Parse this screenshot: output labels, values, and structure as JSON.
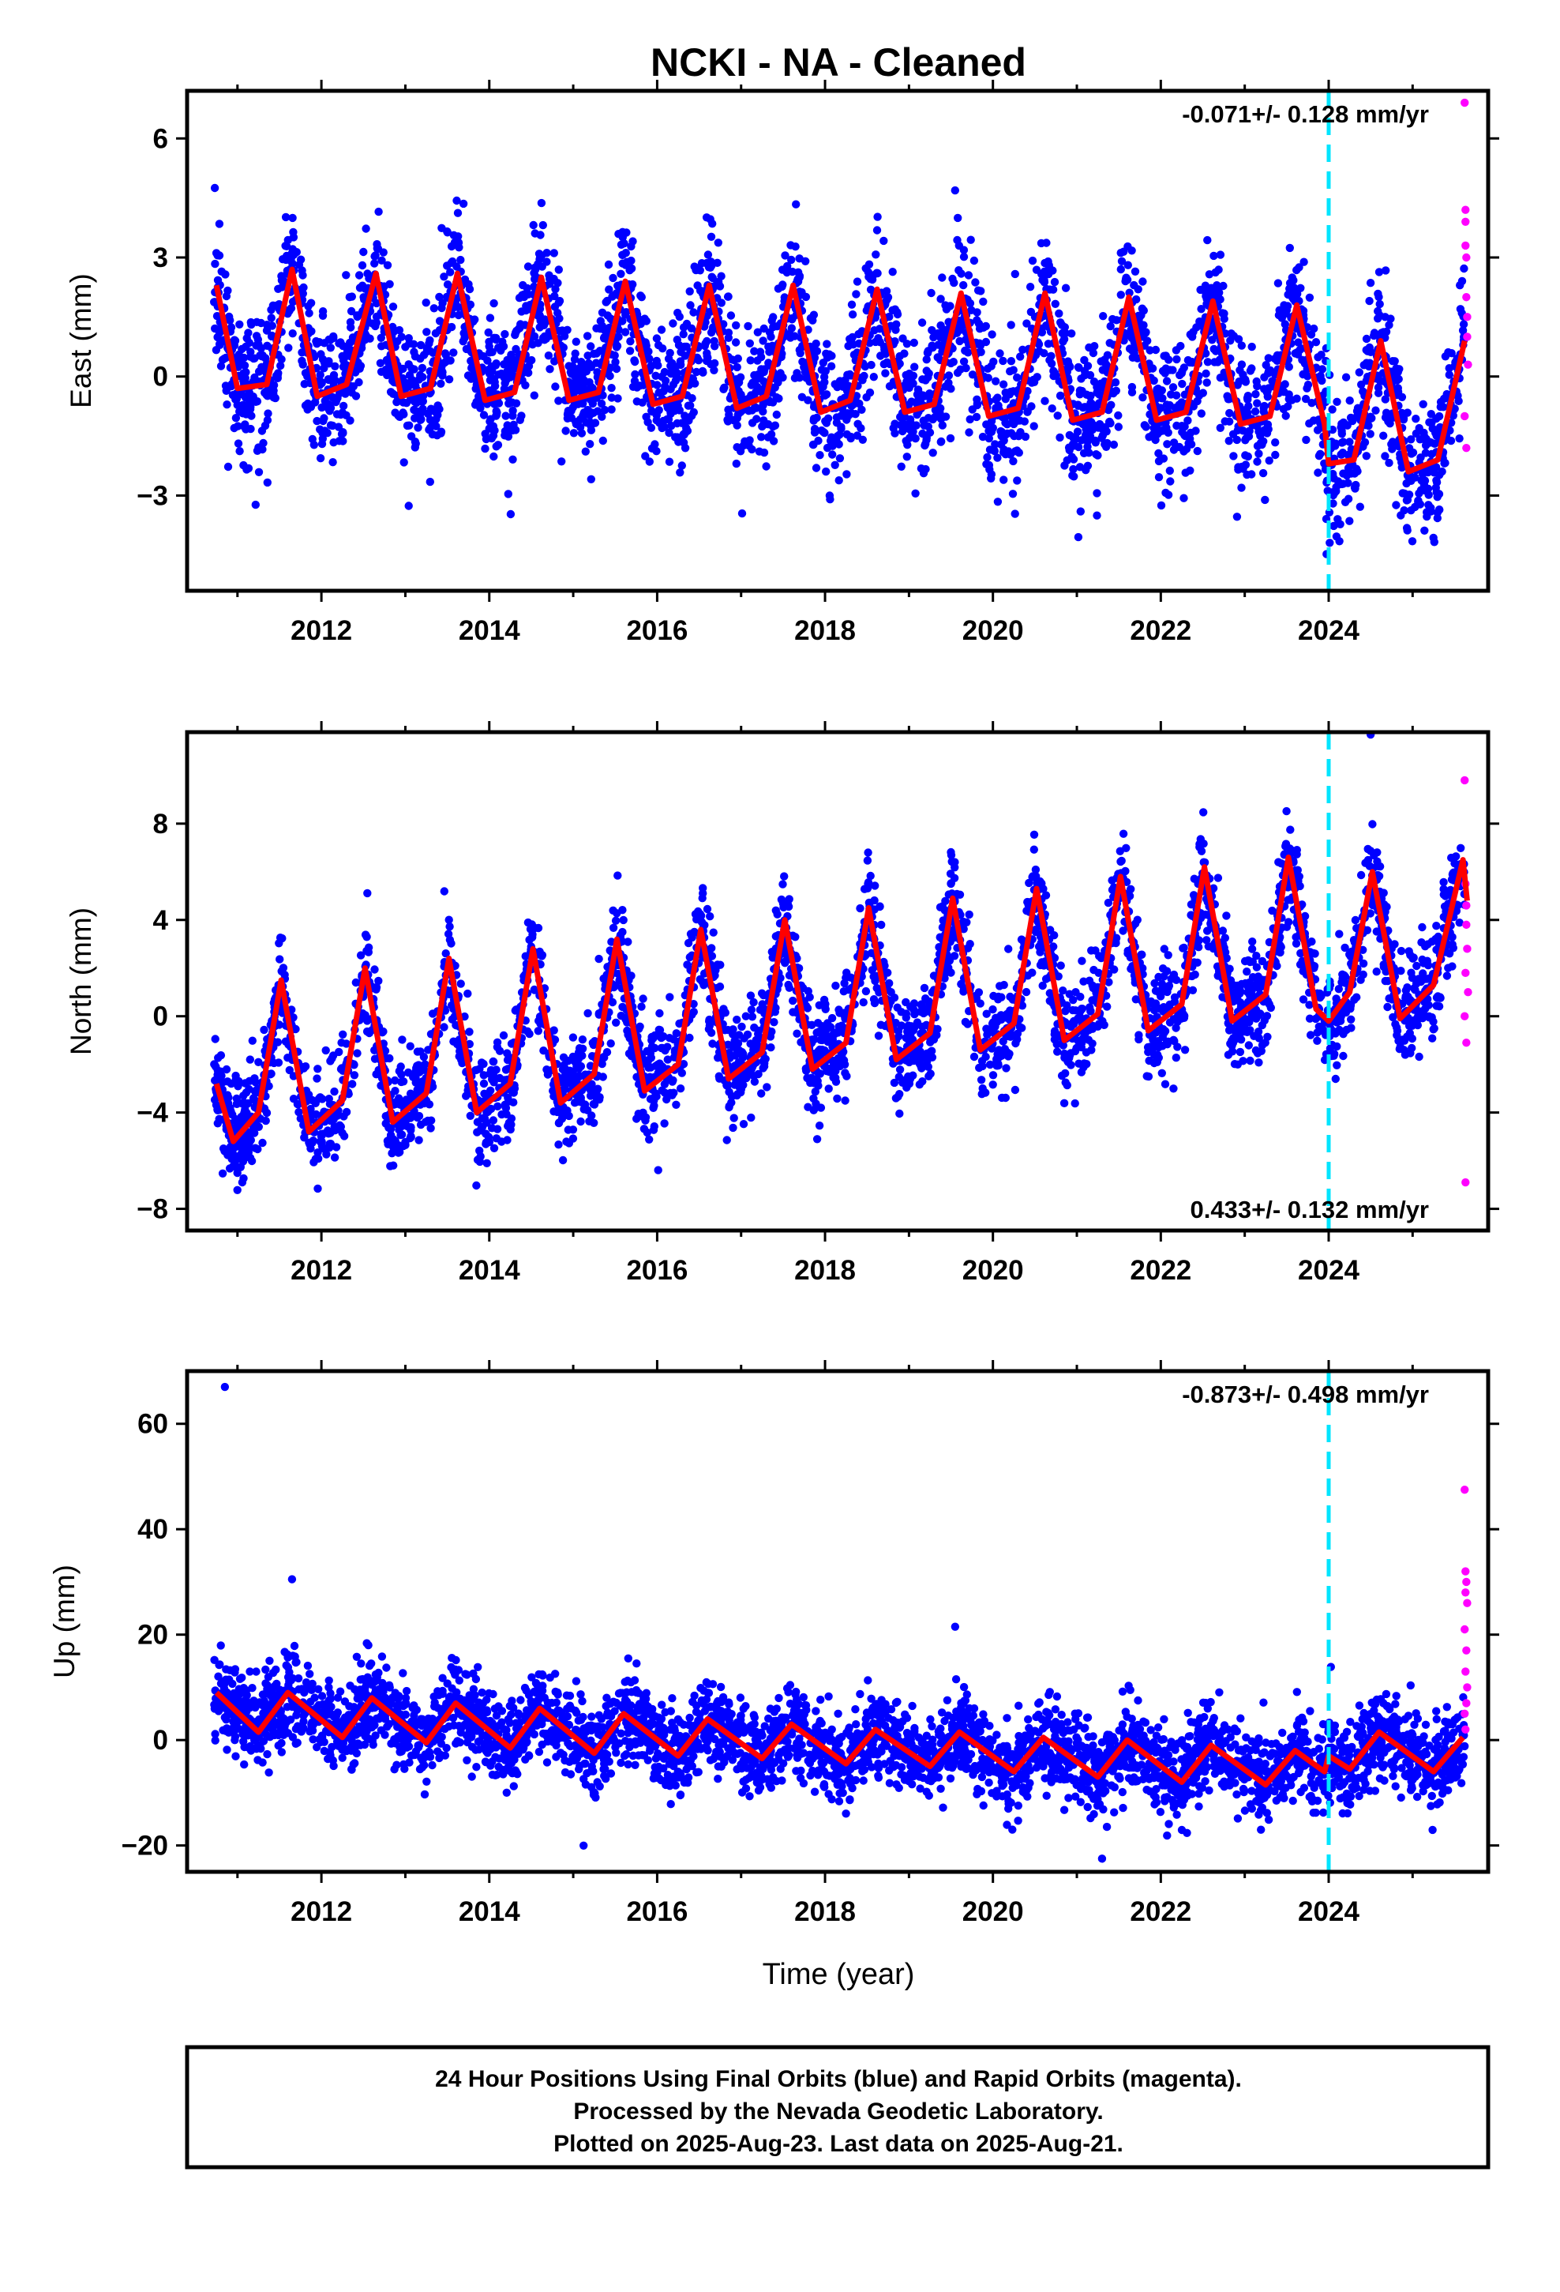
{
  "title": "NCKI  - NA - Cleaned",
  "xlabel": "Time (year)",
  "caption": [
    "24 Hour Positions Using Final Orbits (blue) and Rapid Orbits (magenta).",
    "Processed by the Nevada Geodetic Laboratory.",
    "Plotted on 2025-Aug-23. Last data on 2025-Aug-21."
  ],
  "colors": {
    "final": "#0000ff",
    "rapid": "#ff00ff",
    "model": "#ff0000",
    "marker": "#00e5ff",
    "frame": "#000000"
  },
  "chart_data": [
    {
      "type": "scatter",
      "ylabel": "East (mm)",
      "rate_label": "-0.071+/- 0.128 mm/yr",
      "rate_position": "top-right",
      "xlim": [
        2010.4,
        2025.9
      ],
      "ylim": [
        -5.4,
        7.2
      ],
      "yticks": [
        -3,
        0,
        3,
        6
      ],
      "xticks": [
        2012,
        2014,
        2016,
        2018,
        2020,
        2022,
        2024
      ],
      "marker_line_x": 2024.0,
      "model": {
        "x": [
          2010.75,
          2011.0,
          2011.35,
          2011.65,
          2011.95,
          2012.3,
          2012.65,
          2012.95,
          2013.3,
          2013.62,
          2013.95,
          2014.3,
          2014.62,
          2014.95,
          2015.3,
          2015.62,
          2015.95,
          2016.3,
          2016.62,
          2016.95,
          2017.3,
          2017.62,
          2017.95,
          2018.3,
          2018.62,
          2018.95,
          2019.3,
          2019.62,
          2019.95,
          2020.3,
          2020.62,
          2020.95,
          2021.3,
          2021.62,
          2021.95,
          2022.3,
          2022.62,
          2022.95,
          2023.3,
          2023.62,
          2023.95,
          2024.0,
          2024.3,
          2024.62,
          2024.95,
          2025.3,
          2025.62
        ],
        "y": [
          2.3,
          -0.3,
          -0.2,
          2.7,
          -0.5,
          -0.2,
          2.6,
          -0.5,
          -0.3,
          2.6,
          -0.6,
          -0.4,
          2.5,
          -0.6,
          -0.4,
          2.4,
          -0.7,
          -0.5,
          2.3,
          -0.8,
          -0.5,
          2.3,
          -0.9,
          -0.6,
          2.2,
          -0.9,
          -0.7,
          2.1,
          -1.0,
          -0.8,
          2.1,
          -1.1,
          -0.9,
          2.0,
          -1.1,
          -0.9,
          1.9,
          -1.2,
          -1.0,
          1.8,
          -1.2,
          -2.2,
          -2.1,
          0.9,
          -2.4,
          -2.1,
          0.9
        ]
      },
      "rapid_points": {
        "x": [
          2025.62,
          2025.63,
          2025.63,
          2025.64,
          2025.64,
          2025.65,
          2025.65,
          2025.66,
          2025.62,
          2025.64,
          2025.63
        ],
        "y": [
          6.9,
          4.2,
          3.3,
          3.0,
          2.0,
          1.5,
          1.0,
          0.3,
          -1.0,
          -1.8,
          3.9
        ]
      },
      "cloud": {
        "start": 2010.72,
        "end": 2025.62,
        "spread": 0.9
      }
    },
    {
      "type": "scatter",
      "ylabel": "North (mm)",
      "rate_label": "0.433+/- 0.132 mm/yr",
      "rate_position": "bottom-right",
      "xlim": [
        2010.4,
        2025.9
      ],
      "ylim": [
        -8.9,
        11.8
      ],
      "yticks": [
        -8,
        -4,
        0,
        4,
        8
      ],
      "xticks": [
        2012,
        2014,
        2016,
        2018,
        2020,
        2022,
        2024
      ],
      "marker_line_x": 2024.0,
      "model": {
        "x": [
          2010.75,
          2010.95,
          2011.25,
          2011.52,
          2011.85,
          2012.25,
          2012.52,
          2012.85,
          2013.25,
          2013.52,
          2013.85,
          2014.25,
          2014.52,
          2014.85,
          2015.25,
          2015.52,
          2015.85,
          2016.25,
          2016.52,
          2016.85,
          2017.25,
          2017.52,
          2017.85,
          2018.25,
          2018.52,
          2018.85,
          2019.25,
          2019.52,
          2019.85,
          2020.25,
          2020.52,
          2020.85,
          2021.25,
          2021.52,
          2021.85,
          2022.25,
          2022.52,
          2022.85,
          2023.25,
          2023.52,
          2023.85,
          2024.0,
          2024.25,
          2024.52,
          2024.85,
          2025.25,
          2025.6,
          2025.65
        ],
        "y": [
          -2.8,
          -5.2,
          -4.0,
          1.5,
          -4.8,
          -3.5,
          2.0,
          -4.4,
          -3.2,
          2.4,
          -4.0,
          -2.8,
          2.8,
          -3.6,
          -2.4,
          3.2,
          -3.1,
          -2.0,
          3.6,
          -2.6,
          -1.5,
          4.0,
          -2.2,
          -1.1,
          4.5,
          -1.8,
          -0.7,
          4.9,
          -1.4,
          -0.3,
          5.3,
          -1.0,
          0.1,
          5.8,
          -0.6,
          0.5,
          6.2,
          -0.2,
          0.9,
          6.6,
          0.3,
          -0.2,
          1.0,
          6.0,
          -0.1,
          1.3,
          6.5,
          4.8
        ]
      },
      "rapid_points": {
        "x": [
          2025.62,
          2025.63,
          2025.64,
          2025.64,
          2025.65,
          2025.63,
          2025.66,
          2025.62,
          2025.64,
          2025.63
        ],
        "y": [
          9.8,
          5.5,
          4.6,
          3.8,
          2.8,
          1.8,
          1.0,
          0.0,
          -1.1,
          -6.9
        ]
      },
      "extra_points": {
        "x": [
          2024.5
        ],
        "y": [
          11.7
        ]
      },
      "cloud": {
        "start": 2010.72,
        "end": 2025.62,
        "spread": 1.1
      }
    },
    {
      "type": "scatter",
      "ylabel": "Up (mm)",
      "rate_label": "-0.873+/- 0.498 mm/yr",
      "rate_position": "top-right",
      "xlim": [
        2010.4,
        2025.9
      ],
      "ylim": [
        -25.0,
        70.0
      ],
      "yticks": [
        -20,
        0,
        20,
        40,
        60
      ],
      "xticks": [
        2012,
        2014,
        2016,
        2018,
        2020,
        2022,
        2024
      ],
      "marker_line_x": 2024.0,
      "model": {
        "x": [
          2010.75,
          2011.25,
          2011.6,
          2012.25,
          2012.6,
          2013.25,
          2013.6,
          2014.25,
          2014.6,
          2015.25,
          2015.6,
          2016.25,
          2016.6,
          2017.25,
          2017.6,
          2018.25,
          2018.6,
          2019.25,
          2019.6,
          2020.25,
          2020.6,
          2021.25,
          2021.6,
          2022.25,
          2022.6,
          2023.25,
          2023.6,
          2023.95,
          2024.0,
          2024.25,
          2024.6,
          2025.25,
          2025.6
        ],
        "y": [
          9.0,
          1.5,
          9.0,
          0.5,
          8.0,
          -0.5,
          7.0,
          -1.5,
          6.0,
          -2.5,
          5.0,
          -3.0,
          4.0,
          -3.5,
          3.0,
          -4.5,
          2.0,
          -5.0,
          1.5,
          -6.0,
          0.5,
          -7.0,
          0.0,
          -8.0,
          -1.0,
          -8.5,
          -2.0,
          -6.0,
          -3.0,
          -5.5,
          1.5,
          -6.0,
          0.5
        ]
      },
      "rapid_points": {
        "x": [
          2025.62,
          2025.63,
          2025.64,
          2025.63,
          2025.65,
          2025.62,
          2025.64,
          2025.63,
          2025.65,
          2025.64,
          2025.62,
          2025.63
        ],
        "y": [
          47.5,
          32.0,
          30.0,
          28.0,
          26.0,
          21.0,
          17.0,
          13.0,
          10.0,
          7.0,
          5.0,
          2.0
        ]
      },
      "extra_points": {
        "x": [
          2010.85,
          2011.65,
          2019.55,
          2021.3
        ],
        "y": [
          67.0,
          30.5,
          21.5,
          -22.5
        ]
      },
      "cloud": {
        "start": 2010.72,
        "end": 2025.62,
        "spread": 4.0
      }
    }
  ]
}
